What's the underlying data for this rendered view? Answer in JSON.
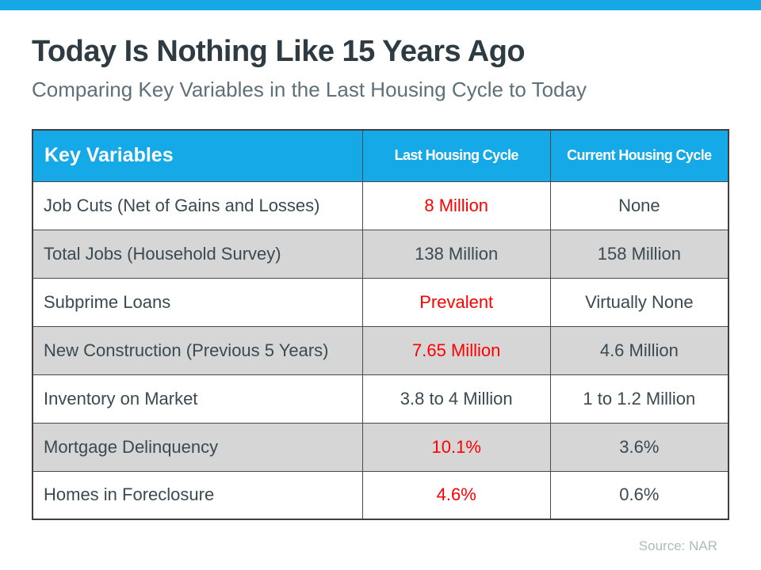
{
  "slide": {
    "title": "Today Is Nothing Like 15 Years Ago",
    "subtitle": "Comparing Key Variables in the Last Housing Cycle to Today",
    "source": "Source: NAR"
  },
  "colors": {
    "accent_blue": "#15a9e8",
    "header_blue": "#15a9e8",
    "highlight_red": "#fe0000",
    "shaded_row_gray": "#d6d6d6",
    "cell_text": "#3a4a52",
    "title_text": "#2e3b43",
    "subtitle_text": "#5e7079",
    "source_text": "#aebac0",
    "border": "#4a4a4a"
  },
  "table": {
    "headers": [
      "Key Variables",
      "Last Housing Cycle",
      "Current Housing Cycle"
    ],
    "rows": [
      {
        "label": "Job Cuts (Net of Gains and Losses)",
        "last": "8 Million",
        "current": "None"
      },
      {
        "label": "Total Jobs (Household Survey)",
        "last": "138 Million",
        "current": "158 Million"
      },
      {
        "label": "Subprime Loans",
        "last": "Prevalent",
        "current": "Virtually None"
      },
      {
        "label": "New Construction (Previous 5 Years)",
        "last": "7.65 Million",
        "current": "4.6 Million"
      },
      {
        "label": "Inventory on Market",
        "last": "3.8 to 4 Million",
        "current": "1 to 1.2 Million"
      },
      {
        "label": "Mortgage Delinquency",
        "last": "10.1%",
        "current": "3.6%"
      },
      {
        "label": "Homes in Foreclosure",
        "last": "4.6%",
        "current": "0.6%"
      }
    ]
  },
  "chart_data": {
    "type": "table",
    "title": "Today Is Nothing Like 15 Years Ago",
    "subtitle": "Comparing Key Variables in the Last Housing Cycle to Today",
    "columns": [
      "Key Variables",
      "Last Housing Cycle",
      "Current Housing Cycle"
    ],
    "rows": [
      [
        "Job Cuts (Net of Gains and Losses)",
        "8 Million",
        "None"
      ],
      [
        "Total Jobs (Household Survey)",
        "138 Million",
        "158 Million"
      ],
      [
        "Subprime Loans",
        "Prevalent",
        "Virtually None"
      ],
      [
        "New Construction (Previous 5 Years)",
        "7.65 Million",
        "4.6 Million"
      ],
      [
        "Inventory on Market",
        "3.8 to 4 Million",
        "1 to 1.2 Million"
      ],
      [
        "Mortgage Delinquency",
        "10.1%",
        "3.6%"
      ],
      [
        "Homes in Foreclosure",
        "4.6%",
        "0.6%"
      ]
    ],
    "red_highlighted_values": [
      "8 Million",
      "Prevalent",
      "7.65 Million",
      "10.1%",
      "4.6%"
    ],
    "shaded_row_indices": [
      1,
      3,
      5
    ],
    "source": "Source: NAR"
  }
}
